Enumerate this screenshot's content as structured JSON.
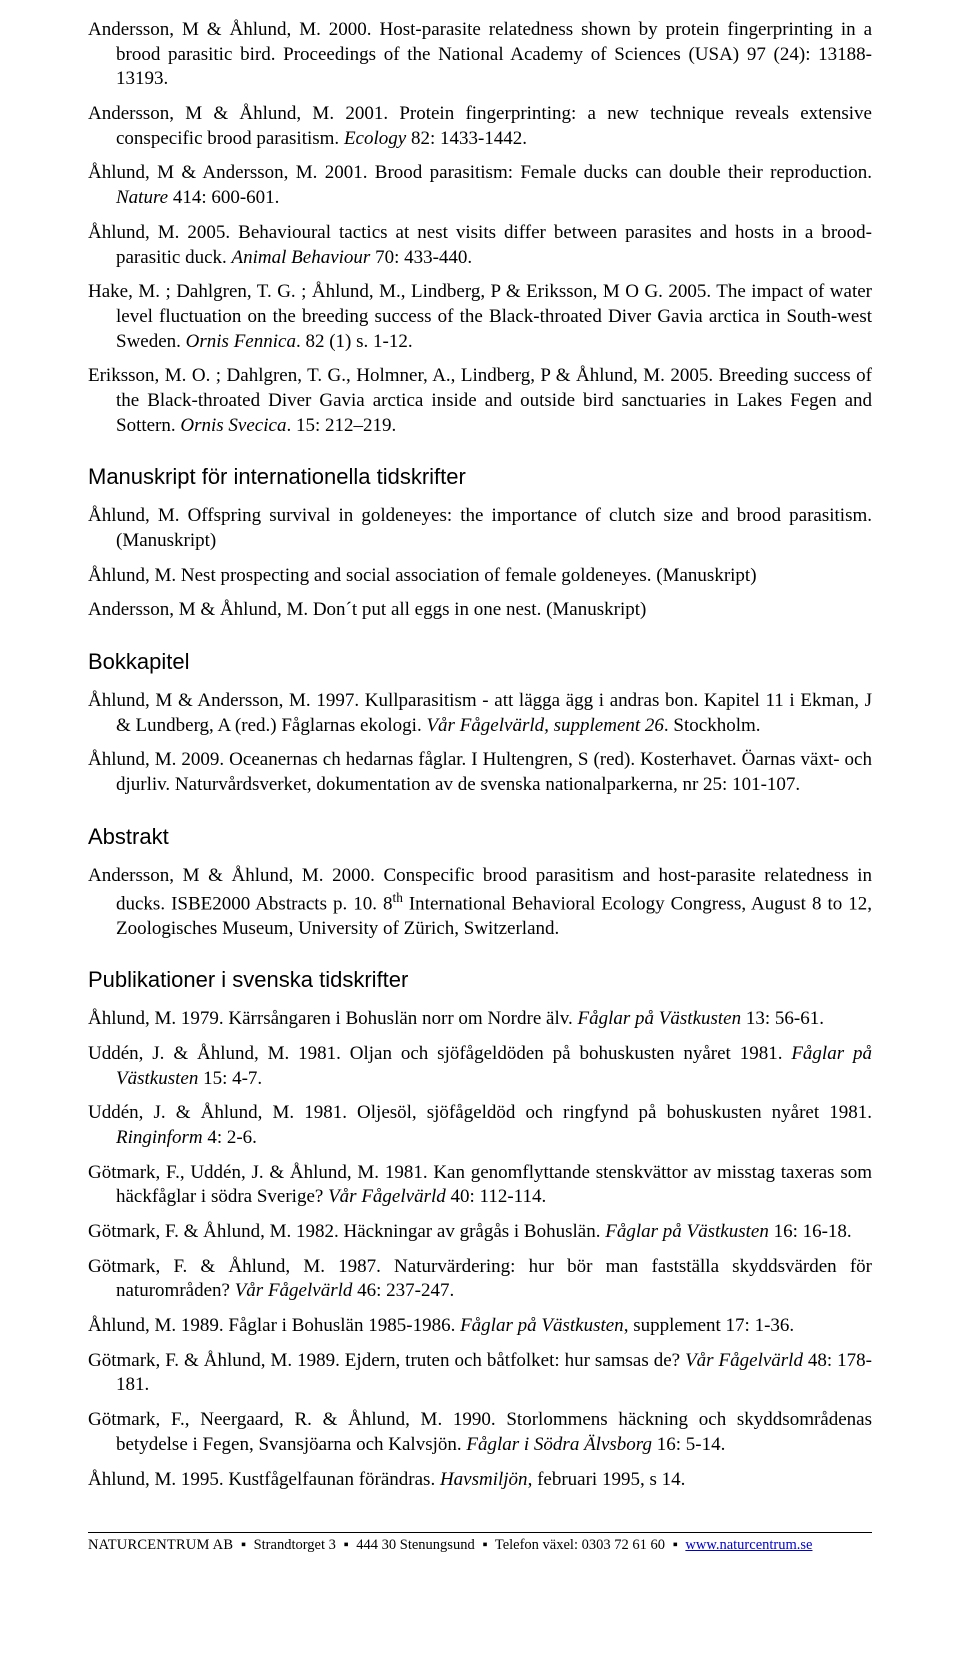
{
  "refs_top": [
    "Andersson, M & Åhlund, M. 2000. Host-parasite relatedness shown by protein fingerprinting in a brood parasitic bird. Proceedings of the National Academy of Sciences (USA) 97 (24): 13188-13193.",
    "Andersson, M & Åhlund, M. 2001. Protein fingerprinting: a new technique reveals extensive conspecific brood parasitism. <i>Ecology</i> 82: 1433-1442.",
    "Åhlund, M & Andersson, M. 2001. Brood parasitism: Female ducks can double their reproduction. <i>Nature</i> 414: 600-601.",
    "Åhlund, M. 2005. Behavioural tactics at nest visits differ between parasites and hosts in a brood-parasitic duck. <i>Animal Behaviour</i> 70: 433-440.",
    "Hake, M. ; Dahlgren, T. G. ; Åhlund, M., Lindberg, P & Eriksson, M O G. 2005. The impact of water level fluctuation on the breeding success of the Black-throated Diver Gavia arctica in South-west Sweden. <i>Ornis Fennica</i>. 82 (1) s. 1-12.",
    "Eriksson, M. O. ; Dahlgren, T. G., Holmner, A., Lindberg, P  & Åhlund, M. 2005. Breeding success of the Black-throated Diver Gavia arctica inside and outside bird sanctuaries in Lakes Fegen and Sottern. <i>Ornis Svecica</i>. 15: 212–219."
  ],
  "sec_manuskript": "Manuskript för internationella tidskrifter",
  "refs_manuskript": [
    "Åhlund, M. Offspring survival in goldeneyes: the importance of clutch size and brood parasitism. (Manuskript)",
    "Åhlund, M. Nest prospecting and social association of female goldeneyes. (Manuskript)",
    "Andersson, M & Åhlund, M. Don´t put all eggs in one nest. (Manuskript)"
  ],
  "sec_bokkapitel": "Bokkapitel",
  "refs_bokkapitel": [
    "Åhlund, M & Andersson, M. 1997. Kullparasitism - att lägga ägg i andras bon. Kapitel 11 i Ekman, J & Lundberg, A (red.) Fåglarnas ekologi. <i>Vår Fågelvärld, supplement 26</i>. Stockholm.",
    "Åhlund, M. 2009. Oceanernas ch hedarnas fåglar. I Hultengren, S (red). Kosterhavet. Öarnas växt- och djurliv. Naturvårdsverket, dokumentation av de svenska nationalparkerna, nr 25: 101-107."
  ],
  "sec_abstrakt": "Abstrakt",
  "refs_abstrakt": [
    "Andersson, M & Åhlund, M. 2000. Conspecific brood parasitism and host-parasite relatedness in ducks. ISBE2000 Abstracts p. 10. 8<sup>th</sup> International Behavioral Ecology Congress, August 8 to 12, Zoologisches Museum, University of Zürich, Switzerland."
  ],
  "sec_pubsv": "Publikationer i svenska tidskrifter",
  "refs_pubsv": [
    "Åhlund, M. 1979. Kärrsångaren i Bohuslän norr om Nordre älv. <i>Fåglar på Västkusten</i> 13: 56-61.",
    "Uddén, J. & Åhlund, M. 1981. Oljan och sjöfågeldöden på bohuskusten nyåret 1981. <i>Fåglar på Västkusten</i> 15: 4-7.",
    "Uddén, J. & Åhlund, M. 1981. Oljesöl, sjöfågeldöd och ringfynd på bohuskusten nyåret 1981. <i>Ringinform</i> 4: 2-6.",
    "Götmark, F., Uddén, J. & Åhlund, M. 1981. Kan genomflyttande stenskvättor av misstag taxeras som häckfåglar i södra Sverige? <i>Vår Fågelvärld</i> 40: 112-114.",
    "Götmark, F. & Åhlund, M. 1982. Häckningar av grågås i Bohuslän. <i>Fåglar på Västkusten</i> 16: 16-18.",
    "Götmark, F. & Åhlund, M. 1987. Naturvärdering: hur bör man fastställa skyddsvärden för naturområden? <i>Vår Fågelvärld</i> 46: 237-247.",
    "Åhlund, M. 1989. Fåglar i Bohuslän 1985-1986. <i>Fåglar på Västkusten</i>, supplement 17: 1-36.",
    "Götmark, F. & Åhlund, M. 1989. Ejdern, truten och båtfolket: hur samsas de? <i>Vår Fågelvärld</i> 48: 178-181.",
    "Götmark, F., Neergaard, R. & Åhlund, M. 1990. Storlommens häckning och skyddsområdenas betydelse i Fegen, Svansjöarna och Kalvsjön. <i>Fåglar i Södra Älvsborg</i> 16: 5-14.",
    "Åhlund, M. 1995. Kustfågelfaunan förändras. <i>Havsmiljön</i>, februari 1995, s 14."
  ],
  "footer": {
    "company": "NATURCENTRUM AB",
    "address": "Strandtorget 3",
    "postal": "444 30 Stenungsund",
    "phone": "Telefon växel: 0303 72 61 60",
    "url": "www.naturcentrum.se"
  }
}
